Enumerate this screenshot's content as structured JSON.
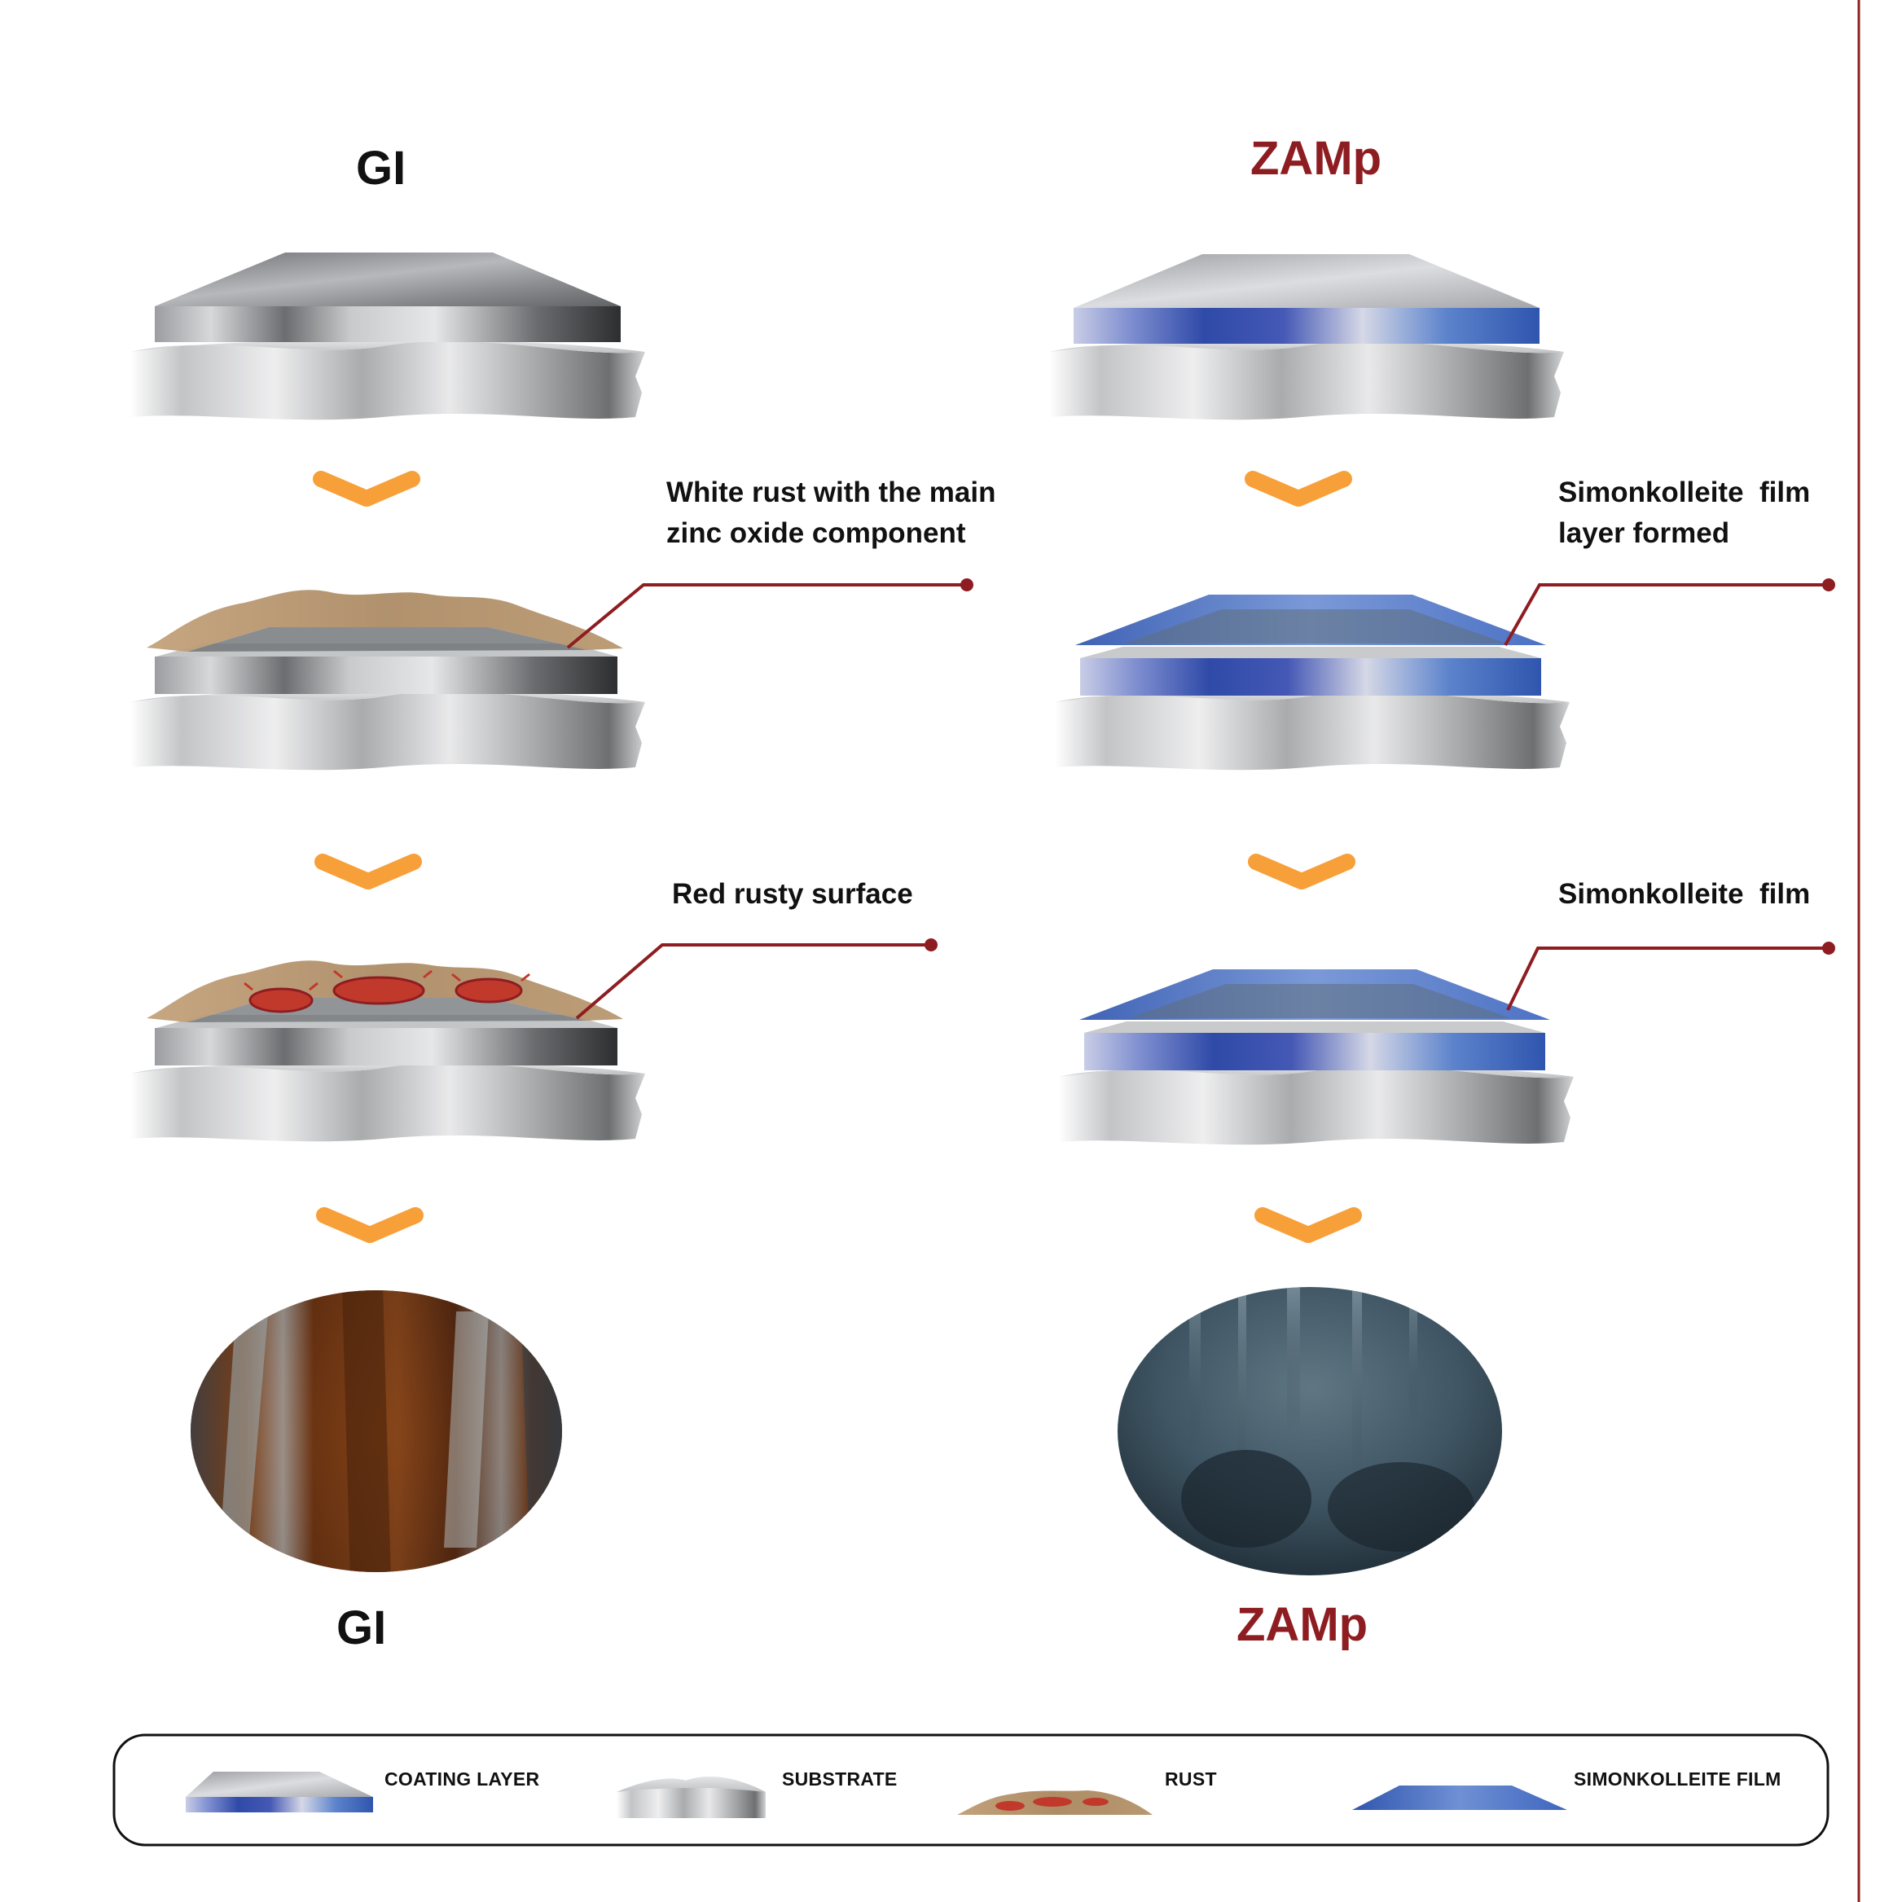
{
  "titles": {
    "gi_top": "GI",
    "zamp_top": "ZAMp",
    "gi_bottom": "GI",
    "zamp_bottom": "ZAMp"
  },
  "callouts": {
    "gi_white_rust": "White rust with the main\nzinc oxide component",
    "gi_red_rust": "Red rusty surface",
    "zamp_film_formed": "Simonkolleite  film\nlayer formed",
    "zamp_film": "Simonkolleite  film"
  },
  "legend": {
    "coating": "COATING LAYER",
    "substrate": "SUBSTRATE",
    "rust": "RUST",
    "film": "SIMONKOLLEITE  FILM"
  },
  "colors": {
    "brand_red": "#8e1d21",
    "arrow_orange": "#f7a03a",
    "zamp_blue": "#3a56b0",
    "film_blue": "#4a78c8",
    "rust_tan": "#b08a62",
    "rust_red": "#c0392b"
  }
}
